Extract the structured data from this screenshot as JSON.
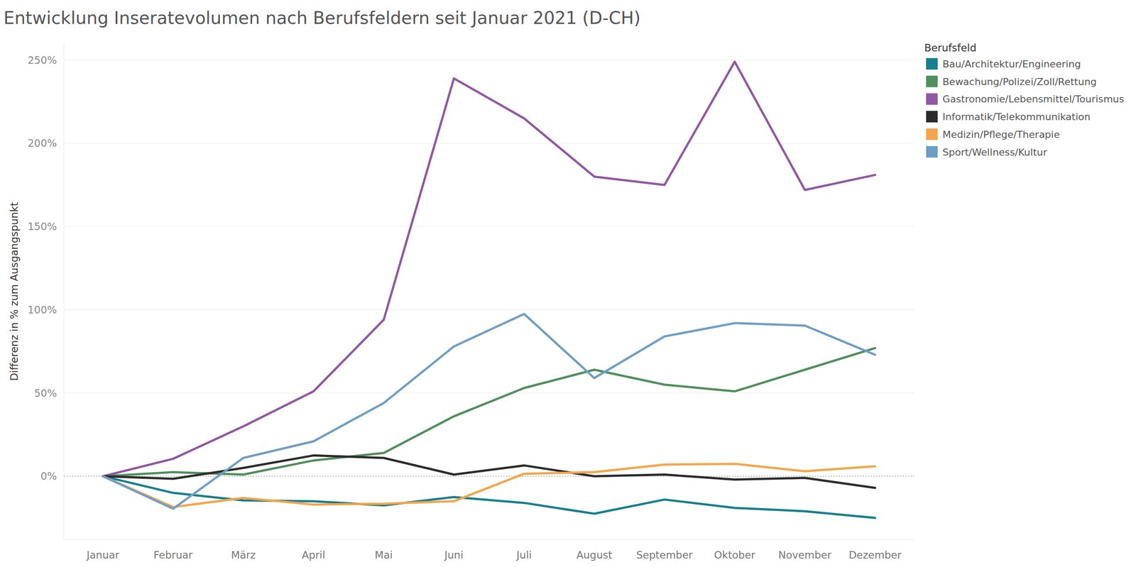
{
  "chart_data": {
    "type": "line",
    "title": "Entwicklung Inseratevolumen nach Berufsfeldern seit Januar 2021 (D-CH)",
    "y_label": "Differenz in % zum Ausgangspunkt",
    "legend_title": "Berufsfeld",
    "categories": [
      "Januar",
      "Februar",
      "März",
      "April",
      "Mai",
      "Juni",
      "Juli",
      "August",
      "September",
      "Oktober",
      "November",
      "Dezember"
    ],
    "series": [
      {
        "name": "Bau/Architektur/Engineering",
        "color": "#177f8f",
        "values": [
          0,
          -10,
          -14.5,
          -15,
          -17.5,
          -12.5,
          -16,
          -22.5,
          -14,
          -19,
          -21,
          -25
        ]
      },
      {
        "name": "Bewachung/Polizei/Zoll/Rettung",
        "color": "#4f8f5c",
        "values": [
          0,
          2.5,
          1,
          9.5,
          14,
          36,
          53,
          64,
          55,
          51,
          64,
          77
        ]
      },
      {
        "name": "Gastronomie/Lebensmittel/Tourismus",
        "color": "#9157a1",
        "values": [
          0,
          10.5,
          30,
          51,
          94,
          239,
          215,
          180,
          175,
          249,
          172,
          181
        ]
      },
      {
        "name": "Informatik/Telekommunikation",
        "color": "#2b2b2b",
        "values": [
          0,
          -1.5,
          5,
          12.5,
          11,
          1,
          6.5,
          0,
          1,
          -2,
          -1,
          -7
        ]
      },
      {
        "name": "Medizin/Pflege/Therapie",
        "color": "#f4a54b",
        "values": [
          0,
          -18.5,
          -13,
          -17,
          -16.5,
          -15,
          1.5,
          2.5,
          7,
          7.5,
          3,
          6
        ]
      },
      {
        "name": "Sport/Wellness/Kultur",
        "color": "#6f9ec4",
        "values": [
          0,
          -19.5,
          11,
          21,
          44,
          78,
          97.5,
          59,
          84,
          92,
          90.5,
          73
        ]
      }
    ],
    "ylim": [
      -38,
      260
    ],
    "yticks": [
      {
        "value": 0,
        "label": "0%"
      },
      {
        "value": 50,
        "label": "50%"
      },
      {
        "value": 100,
        "label": "100%"
      },
      {
        "value": 150,
        "label": "150%"
      },
      {
        "value": 200,
        "label": "200%"
      },
      {
        "value": 250,
        "label": "250%"
      }
    ],
    "grid": true,
    "legend": "right"
  }
}
